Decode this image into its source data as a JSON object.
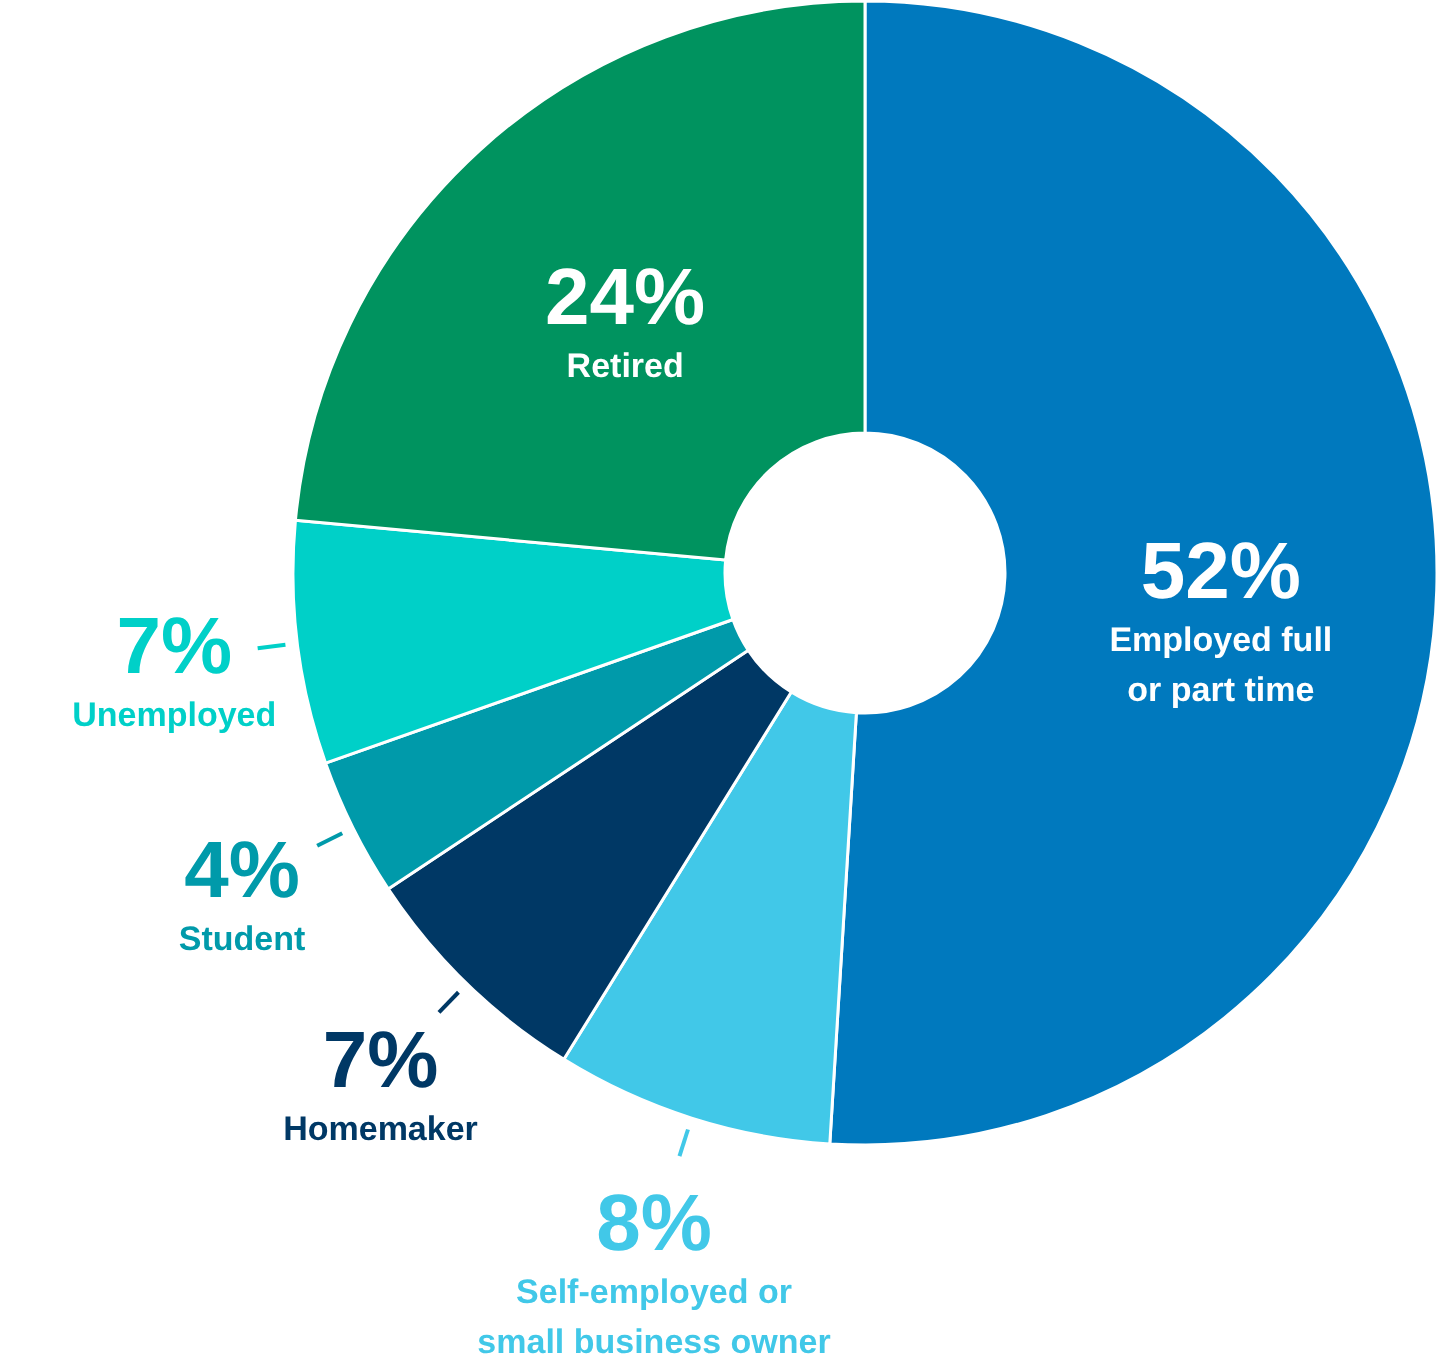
{
  "chart_data": {
    "type": "donut",
    "categories": [
      "Employed full\nor part time",
      "Self-employed or\nsmall business owner",
      "Homemaker",
      "Student",
      "Unemployed",
      "Retired"
    ],
    "values": [
      52,
      8,
      7,
      4,
      7,
      24
    ],
    "value_labels": [
      "52%",
      "8%",
      "7%",
      "4%",
      "7%",
      "24%"
    ],
    "colors": [
      "#0079be",
      "#41c8e8",
      "#003865",
      "#009aaa",
      "#00d0c8",
      "#00935f"
    ],
    "legend": false
  }
}
